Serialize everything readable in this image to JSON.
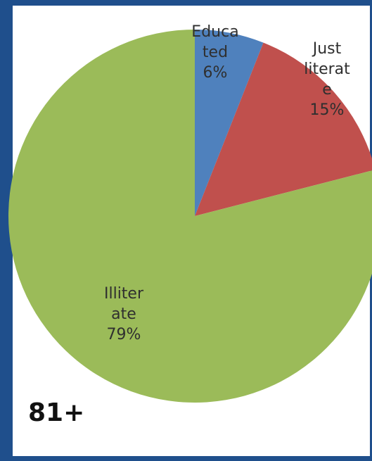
{
  "chart_data": {
    "type": "pie",
    "corner_label": "81+",
    "slices": [
      {
        "name": "Educated",
        "label_lines": [
          "Educa",
          "ted",
          "6%"
        ],
        "value": 6,
        "color": "#4f81bd"
      },
      {
        "name": "Just literate",
        "label_lines": [
          "Just",
          "literat",
          "e",
          "15%"
        ],
        "value": 15,
        "color": "#c0504d"
      },
      {
        "name": "Illiterate",
        "label_lines": [
          "Illiter",
          "ate",
          "79%"
        ],
        "value": 79,
        "color": "#9bbb59"
      }
    ],
    "title": "",
    "legend": "none"
  }
}
